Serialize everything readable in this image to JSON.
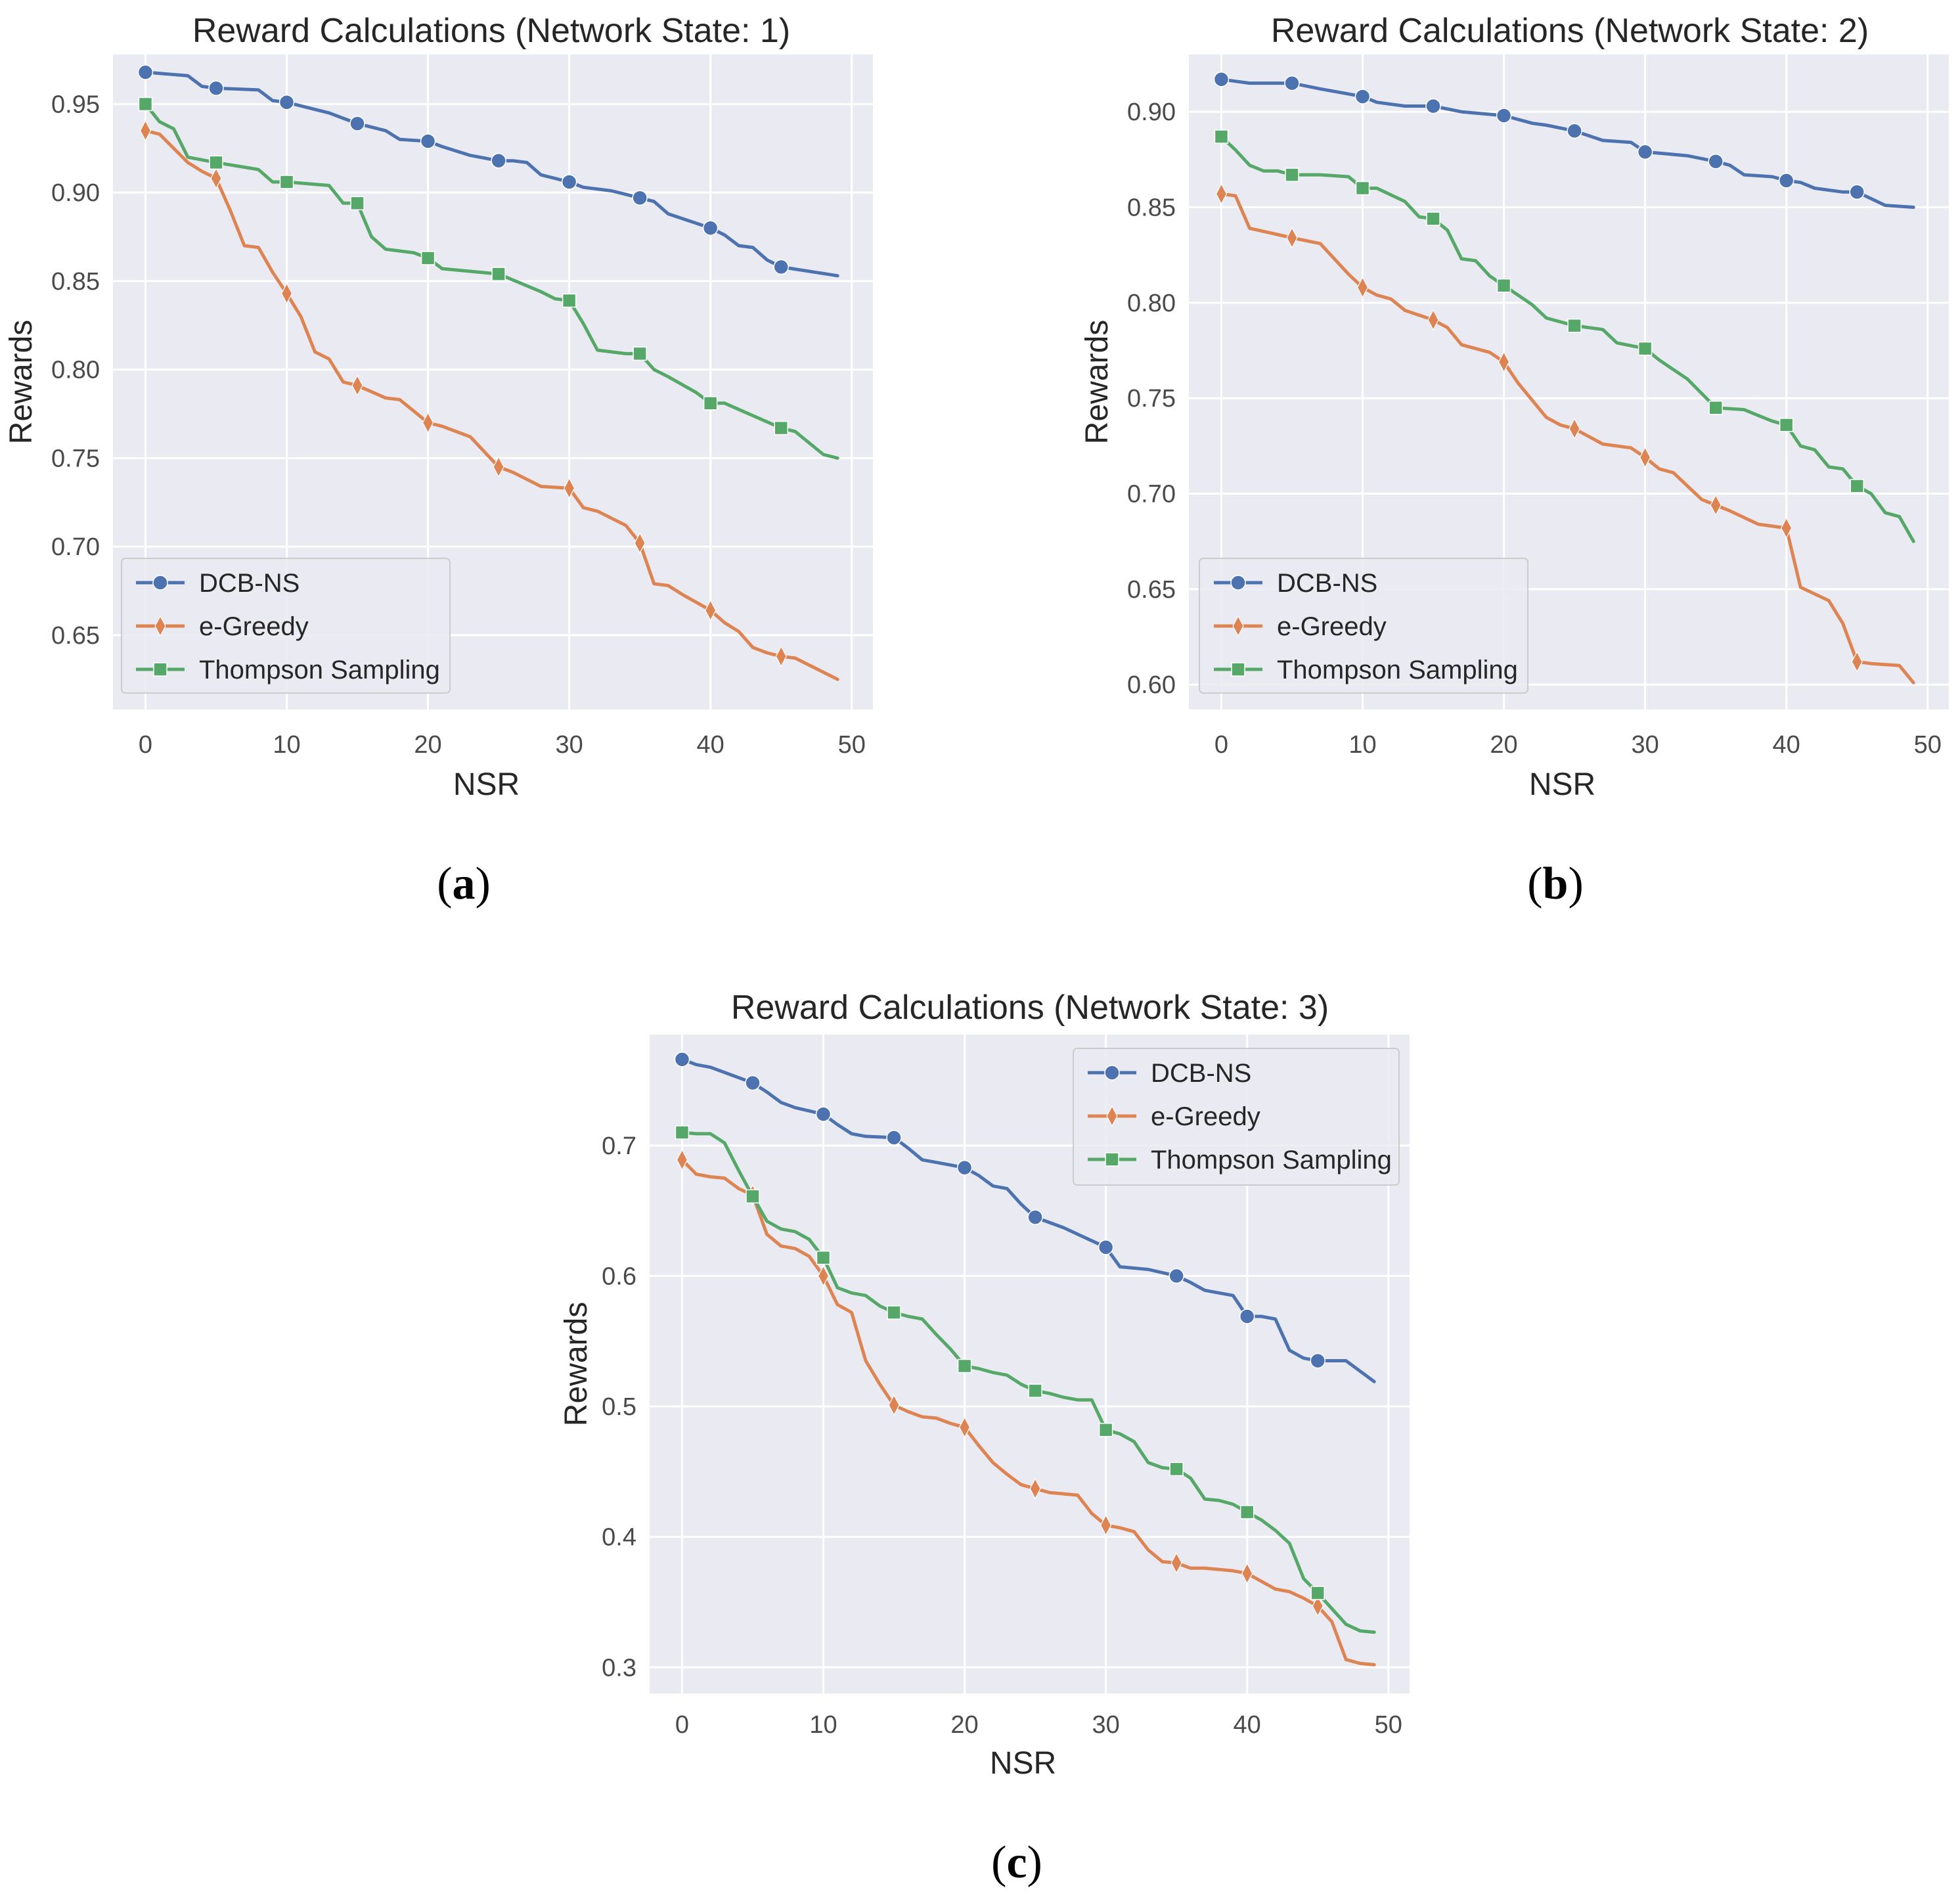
{
  "colors": {
    "plot_bg": "#eaeaf2",
    "grid": "#ffffff",
    "DCB-NS": "#4c72b0",
    "e-Greedy": "#dd8452",
    "Thompson Sampling": "#55a868"
  },
  "chart_data": [
    {
      "id": "a",
      "type": "line",
      "caption_open": "(",
      "caption_letter": "a",
      "caption_close": ")",
      "title": "Reward Calculations (Network State: 1)",
      "xlabel": "NSR",
      "ylabel": "Rewards",
      "xlim": [
        -2.3,
        51.5
      ],
      "ylim": [
        0.608,
        0.978
      ],
      "xticks": [
        0,
        10,
        20,
        30,
        40,
        50
      ],
      "yticks": [
        0.65,
        0.7,
        0.75,
        0.8,
        0.85,
        0.9,
        0.95
      ],
      "ytick_labels": [
        "0.65",
        "0.70",
        "0.75",
        "0.80",
        "0.85",
        "0.90",
        "0.95"
      ],
      "legend_position": "lower-left",
      "series": [
        {
          "name": "DCB-NS",
          "marker": "circle",
          "x": [
            0,
            3,
            4,
            5,
            8,
            9,
            10,
            13,
            15,
            17,
            18,
            20,
            21,
            23,
            25,
            26,
            27,
            28,
            30,
            31,
            33,
            35,
            36,
            37,
            40,
            41,
            42,
            43,
            44,
            45,
            49
          ],
          "y": [
            0.968,
            0.966,
            0.96,
            0.959,
            0.958,
            0.952,
            0.951,
            0.945,
            0.939,
            0.935,
            0.93,
            0.929,
            0.926,
            0.921,
            0.918,
            0.918,
            0.917,
            0.91,
            0.906,
            0.903,
            0.901,
            0.897,
            0.895,
            0.888,
            0.88,
            0.876,
            0.87,
            0.869,
            0.862,
            0.858,
            0.853
          ]
        },
        {
          "name": "e-Greedy",
          "marker": "diamond",
          "x": [
            0,
            1,
            3,
            4,
            5,
            6,
            7,
            8,
            9,
            10,
            11,
            12,
            13,
            14,
            15,
            17,
            18,
            20,
            21,
            23,
            25,
            26,
            27,
            28,
            30,
            31,
            32,
            34,
            35,
            36,
            37,
            38,
            40,
            41,
            42,
            43,
            44,
            45,
            46,
            49
          ],
          "y": [
            0.935,
            0.933,
            0.917,
            0.912,
            0.908,
            0.89,
            0.87,
            0.869,
            0.855,
            0.843,
            0.83,
            0.81,
            0.806,
            0.793,
            0.791,
            0.784,
            0.783,
            0.77,
            0.768,
            0.762,
            0.745,
            0.742,
            0.738,
            0.734,
            0.733,
            0.722,
            0.72,
            0.712,
            0.702,
            0.679,
            0.678,
            0.673,
            0.664,
            0.657,
            0.652,
            0.643,
            0.64,
            0.638,
            0.637,
            0.625
          ]
        },
        {
          "name": "Thompson Sampling",
          "marker": "square",
          "x": [
            0,
            1,
            2,
            3,
            5,
            8,
            9,
            10,
            13,
            14,
            15,
            16,
            17,
            19,
            20,
            21,
            25,
            28,
            29,
            30,
            31,
            32,
            34,
            35,
            36,
            37,
            39,
            40,
            41,
            45,
            46,
            48,
            49
          ],
          "y": [
            0.95,
            0.94,
            0.936,
            0.92,
            0.917,
            0.913,
            0.906,
            0.906,
            0.904,
            0.894,
            0.894,
            0.875,
            0.868,
            0.866,
            0.863,
            0.857,
            0.854,
            0.844,
            0.84,
            0.839,
            0.826,
            0.811,
            0.809,
            0.809,
            0.8,
            0.796,
            0.787,
            0.781,
            0.781,
            0.767,
            0.765,
            0.752,
            0.75
          ]
        }
      ]
    },
    {
      "id": "b",
      "type": "line",
      "caption_open": "(",
      "caption_letter": "b",
      "caption_close": ")",
      "title": "Reward Calculations (Network State: 2)",
      "xlabel": "NSR",
      "ylabel": "Rewards",
      "xlim": [
        -2.3,
        51.5
      ],
      "ylim": [
        0.587,
        0.93
      ],
      "xticks": [
        0,
        10,
        20,
        30,
        40,
        50
      ],
      "yticks": [
        0.6,
        0.65,
        0.7,
        0.75,
        0.8,
        0.85,
        0.9
      ],
      "ytick_labels": [
        "0.60",
        "0.65",
        "0.70",
        "0.75",
        "0.80",
        "0.85",
        "0.90"
      ],
      "legend_position": "lower-left",
      "series": [
        {
          "name": "DCB-NS",
          "marker": "circle",
          "x": [
            0,
            2,
            5,
            7,
            10,
            11,
            13,
            15,
            17,
            20,
            22,
            23,
            25,
            27,
            29,
            30,
            33,
            35,
            36,
            37,
            39,
            40,
            41,
            42,
            44,
            45,
            47,
            49
          ],
          "y": [
            0.917,
            0.915,
            0.915,
            0.912,
            0.908,
            0.905,
            0.903,
            0.903,
            0.9,
            0.898,
            0.894,
            0.893,
            0.89,
            0.885,
            0.884,
            0.879,
            0.877,
            0.874,
            0.872,
            0.867,
            0.866,
            0.864,
            0.863,
            0.86,
            0.858,
            0.858,
            0.851,
            0.85
          ]
        },
        {
          "name": "e-Greedy",
          "marker": "diamond",
          "x": [
            0,
            1,
            2,
            5,
            7,
            9,
            10,
            11,
            12,
            13,
            15,
            16,
            17,
            19,
            20,
            21,
            23,
            24,
            25,
            27,
            29,
            30,
            31,
            32,
            34,
            35,
            36,
            38,
            40,
            41,
            43,
            44,
            45,
            46,
            48,
            49
          ],
          "y": [
            0.857,
            0.856,
            0.839,
            0.834,
            0.831,
            0.815,
            0.808,
            0.804,
            0.802,
            0.796,
            0.791,
            0.787,
            0.778,
            0.774,
            0.769,
            0.758,
            0.74,
            0.736,
            0.734,
            0.726,
            0.724,
            0.719,
            0.713,
            0.711,
            0.697,
            0.694,
            0.691,
            0.684,
            0.682,
            0.651,
            0.644,
            0.632,
            0.612,
            0.611,
            0.61,
            0.601
          ]
        },
        {
          "name": "Thompson Sampling",
          "marker": "square",
          "x": [
            0,
            1,
            2,
            3,
            4,
            5,
            6,
            7,
            9,
            10,
            11,
            13,
            14,
            15,
            16,
            17,
            18,
            19,
            20,
            21,
            22,
            23,
            25,
            26,
            27,
            28,
            30,
            31,
            33,
            35,
            37,
            38,
            39,
            40,
            41,
            42,
            43,
            44,
            45,
            46,
            47,
            48,
            49
          ],
          "y": [
            0.887,
            0.88,
            0.872,
            0.869,
            0.869,
            0.867,
            0.867,
            0.867,
            0.866,
            0.86,
            0.86,
            0.853,
            0.845,
            0.844,
            0.838,
            0.823,
            0.822,
            0.814,
            0.809,
            0.804,
            0.799,
            0.792,
            0.788,
            0.787,
            0.786,
            0.779,
            0.776,
            0.77,
            0.76,
            0.745,
            0.744,
            0.741,
            0.738,
            0.736,
            0.725,
            0.723,
            0.714,
            0.713,
            0.704,
            0.7,
            0.69,
            0.688,
            0.675
          ]
        }
      ]
    },
    {
      "id": "c",
      "type": "line",
      "caption_open": "(",
      "caption_letter": "c",
      "caption_close": ")",
      "title": "Reward Calculations (Network State: 3)",
      "xlabel": "NSR",
      "ylabel": "Rewards",
      "xlim": [
        -2.3,
        51.5
      ],
      "ylim": [
        0.28,
        0.785
      ],
      "xticks": [
        0,
        10,
        20,
        30,
        40,
        50
      ],
      "yticks": [
        0.3,
        0.4,
        0.5,
        0.6,
        0.7
      ],
      "ytick_labels": [
        "0.3",
        "0.4",
        "0.5",
        "0.6",
        "0.7"
      ],
      "legend_position": "upper-right",
      "series": [
        {
          "name": "DCB-NS",
          "marker": "circle",
          "x": [
            0,
            1,
            2,
            4,
            5,
            6,
            7,
            8,
            10,
            11,
            12,
            13,
            15,
            16,
            17,
            18,
            20,
            21,
            22,
            23,
            24,
            25,
            27,
            28,
            30,
            31,
            33,
            35,
            36,
            37,
            39,
            40,
            41,
            42,
            43,
            44,
            45,
            47,
            49
          ],
          "y": [
            0.766,
            0.762,
            0.76,
            0.752,
            0.748,
            0.741,
            0.733,
            0.729,
            0.724,
            0.716,
            0.709,
            0.707,
            0.706,
            0.698,
            0.689,
            0.687,
            0.683,
            0.677,
            0.669,
            0.667,
            0.655,
            0.645,
            0.637,
            0.632,
            0.622,
            0.607,
            0.605,
            0.6,
            0.595,
            0.589,
            0.585,
            0.569,
            0.569,
            0.567,
            0.543,
            0.537,
            0.535,
            0.535,
            0.519
          ]
        },
        {
          "name": "e-Greedy",
          "marker": "diamond",
          "x": [
            0,
            1,
            2,
            3,
            4,
            5,
            6,
            7,
            8,
            9,
            10,
            11,
            12,
            13,
            14,
            15,
            16,
            17,
            18,
            19,
            20,
            21,
            22,
            23,
            24,
            25,
            26,
            27,
            28,
            29,
            30,
            31,
            32,
            33,
            34,
            35,
            36,
            37,
            38,
            39,
            40,
            41,
            42,
            43,
            44,
            45,
            46,
            47,
            48,
            49
          ],
          "y": [
            0.689,
            0.678,
            0.676,
            0.675,
            0.667,
            0.662,
            0.632,
            0.623,
            0.621,
            0.615,
            0.6,
            0.578,
            0.572,
            0.535,
            0.517,
            0.501,
            0.496,
            0.492,
            0.491,
            0.487,
            0.484,
            0.47,
            0.457,
            0.448,
            0.44,
            0.437,
            0.434,
            0.433,
            0.432,
            0.418,
            0.409,
            0.407,
            0.404,
            0.39,
            0.381,
            0.38,
            0.376,
            0.376,
            0.375,
            0.374,
            0.372,
            0.366,
            0.36,
            0.358,
            0.353,
            0.347,
            0.335,
            0.306,
            0.303,
            0.302
          ]
        },
        {
          "name": "Thompson Sampling",
          "marker": "square",
          "x": [
            0,
            1,
            2,
            3,
            4,
            5,
            6,
            7,
            8,
            9,
            10,
            11,
            12,
            13,
            14,
            15,
            16,
            17,
            18,
            19,
            20,
            21,
            22,
            23,
            24,
            25,
            26,
            27,
            28,
            29,
            30,
            31,
            32,
            33,
            34,
            35,
            36,
            37,
            38,
            39,
            40,
            41,
            42,
            43,
            44,
            45,
            46,
            47,
            48,
            49
          ],
          "y": [
            0.71,
            0.709,
            0.709,
            0.702,
            0.681,
            0.661,
            0.642,
            0.636,
            0.634,
            0.628,
            0.614,
            0.591,
            0.587,
            0.585,
            0.577,
            0.572,
            0.569,
            0.567,
            0.555,
            0.544,
            0.531,
            0.529,
            0.526,
            0.524,
            0.517,
            0.512,
            0.51,
            0.507,
            0.505,
            0.505,
            0.482,
            0.479,
            0.473,
            0.457,
            0.453,
            0.452,
            0.445,
            0.429,
            0.428,
            0.425,
            0.419,
            0.413,
            0.405,
            0.395,
            0.368,
            0.357,
            0.345,
            0.333,
            0.328,
            0.327
          ]
        }
      ]
    }
  ]
}
